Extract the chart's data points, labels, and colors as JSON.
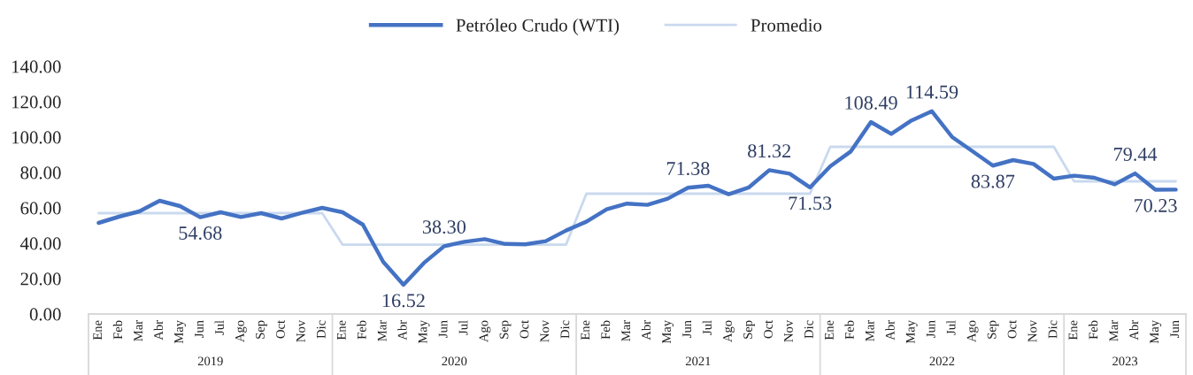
{
  "chart_data": {
    "type": "line",
    "categories": [
      "Ene",
      "Feb",
      "Mar",
      "Abr",
      "May",
      "Jun",
      "Jul",
      "Ago",
      "Sep",
      "Oct",
      "Nov",
      "Dic",
      "Ene",
      "Feb",
      "Mar",
      "Abr",
      "May",
      "Jun",
      "Jul",
      "Ago",
      "Sep",
      "Oct",
      "Nov",
      "Dic",
      "Ene",
      "Feb",
      "Mar",
      "Abr",
      "May",
      "Jun",
      "Jul",
      "Ago",
      "Sep",
      "Oct",
      "Nov",
      "Dic",
      "Ene",
      "Feb",
      "Mar",
      "Abr",
      "May",
      "Jun",
      "Jul",
      "Ago",
      "Sep",
      "Oct",
      "Nov",
      "Dic",
      "Ene",
      "Feb",
      "Mar",
      "Abr",
      "May",
      "Jun"
    ],
    "series": [
      {
        "name": "Petróleo Crudo (WTI)",
        "color": "#4472c4",
        "values": [
          51.5,
          55,
          58,
          64,
          61,
          54.68,
          57.5,
          54.8,
          57,
          54,
          57.2,
          60,
          57.5,
          50.5,
          29.5,
          16.52,
          28.8,
          38.3,
          40.8,
          42.3,
          39.6,
          39.4,
          41.2,
          47.2,
          52.2,
          59.2,
          62.4,
          61.7,
          65.2,
          71.38,
          72.5,
          67.7,
          71.6,
          81.32,
          79.3,
          71.53,
          83.5,
          91.8,
          108.49,
          101.8,
          109.4,
          114.59,
          100,
          92,
          83.87,
          87,
          84.8,
          76.5,
          78.2,
          77,
          73.3,
          79.44,
          70.23,
          70.3
        ],
        "value_labels": [
          null,
          null,
          null,
          null,
          null,
          "54.68",
          null,
          null,
          null,
          null,
          null,
          null,
          null,
          null,
          null,
          "16.52",
          null,
          "38.30",
          null,
          null,
          null,
          null,
          null,
          null,
          null,
          null,
          null,
          null,
          null,
          "71.38",
          null,
          null,
          null,
          "81.32",
          null,
          "71.53",
          null,
          null,
          "108.49",
          null,
          null,
          "114.59",
          null,
          null,
          "83.87",
          null,
          null,
          null,
          null,
          null,
          null,
          "79.44",
          "70.23",
          null
        ]
      },
      {
        "name": "Promedio",
        "color": "#c9d9ee",
        "values": [
          57,
          57,
          57,
          57,
          57,
          57,
          57,
          57,
          57,
          57,
          57,
          57,
          39.2,
          39.2,
          39.2,
          39.2,
          39.2,
          39.2,
          39.2,
          39.2,
          39.2,
          39.2,
          39.2,
          39.2,
          68,
          68,
          68,
          68,
          68,
          68,
          68,
          68,
          68,
          68,
          68,
          68,
          94.5,
          94.5,
          94.5,
          94.5,
          94.5,
          94.5,
          94.5,
          94.5,
          94.5,
          94.5,
          94.5,
          94.5,
          75,
          75,
          75,
          75,
          75,
          75
        ]
      }
    ],
    "ylim": [
      0,
      140
    ],
    "yticks": [
      {
        "value": 0,
        "label": "0.00"
      },
      {
        "value": 20,
        "label": "20.00"
      },
      {
        "value": 40,
        "label": "40.00"
      },
      {
        "value": 60,
        "label": "60.00"
      },
      {
        "value": 80,
        "label": "80.00"
      },
      {
        "value": 100,
        "label": "100.00"
      },
      {
        "value": 120,
        "label": "120.00"
      },
      {
        "value": 140,
        "label": "140.00"
      }
    ],
    "annotations": [
      "2019",
      "2020",
      "2021",
      "2022",
      "2023"
    ],
    "legend": "top",
    "marker": "none",
    "line_style": "solid"
  }
}
